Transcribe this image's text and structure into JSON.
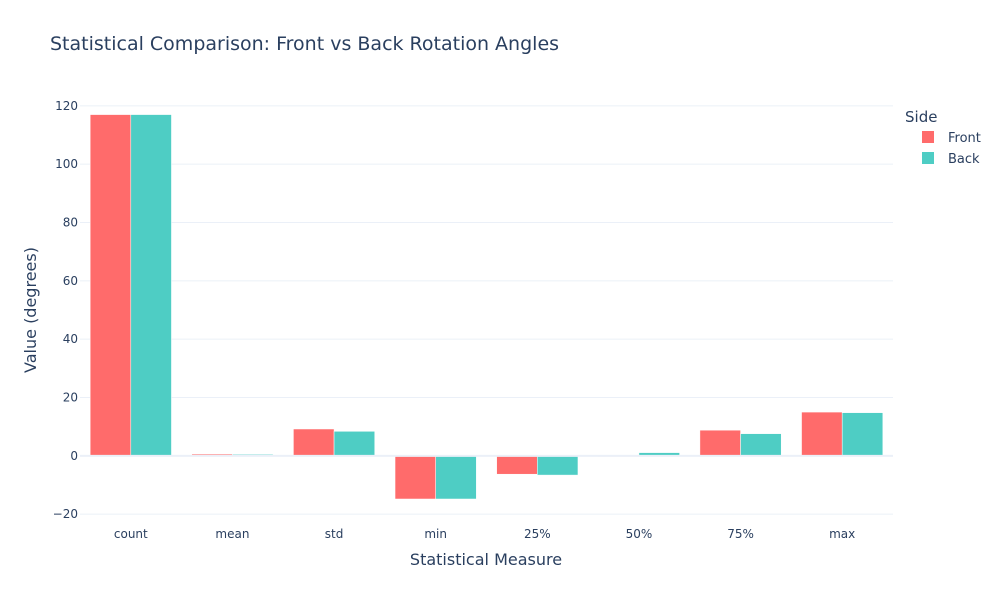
{
  "chart_data": {
    "type": "bar",
    "title": "Statistical Comparison: Front vs Back Rotation Angles",
    "xlabel": "Statistical Measure",
    "ylabel": "Value (degrees)",
    "categories": [
      "count",
      "mean",
      "std",
      "min",
      "25%",
      "50%",
      "75%",
      "max"
    ],
    "series": [
      {
        "name": "Front",
        "color": "#FF6B6B",
        "values": [
          117,
          0.6,
          9.2,
          -14.8,
          -6.3,
          -0.2,
          8.8,
          15.0
        ]
      },
      {
        "name": "Back",
        "color": "#4ECDC4",
        "values": [
          117,
          0.5,
          8.4,
          -14.8,
          -6.6,
          1.1,
          7.6,
          14.8
        ]
      }
    ],
    "ylim": [
      -22,
      122
    ],
    "yticks": [
      -20,
      0,
      20,
      40,
      60,
      80,
      100,
      120
    ],
    "ytick_labels": [
      "−20",
      "0",
      "20",
      "40",
      "60",
      "80",
      "100",
      "120"
    ],
    "legend": {
      "title": "Side",
      "position": "top-right"
    },
    "grid": true
  }
}
